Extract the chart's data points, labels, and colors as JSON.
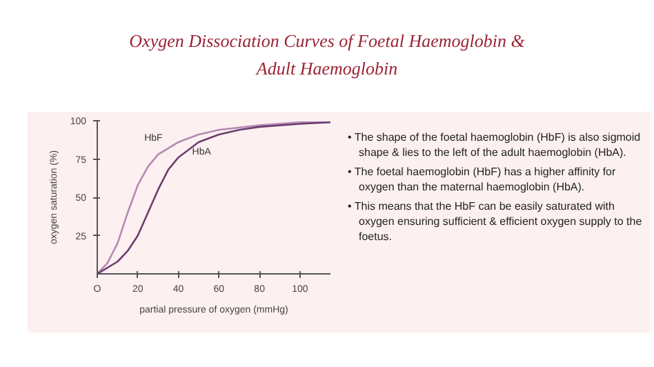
{
  "chart_data": {
    "type": "line",
    "title": "Oxygen Dissociation Curves of Foetal Haemoglobin & Adult Haemoglobin",
    "xlabel": "partial pressure of oxygen (mmHg)",
    "ylabel": "oxygen saturation (%)",
    "xlim": [
      0,
      115
    ],
    "ylim": [
      0,
      100
    ],
    "xticks": [
      {
        "value": 0,
        "label": "O"
      },
      20,
      40,
      60,
      80,
      100
    ],
    "yticks": [
      25,
      50,
      75,
      100
    ],
    "grid": false,
    "legend": false,
    "marker": "none",
    "line_style": "solid",
    "series": [
      {
        "name": "HbF",
        "color": "#b48ab4",
        "x": [
          0,
          5,
          10,
          15,
          20,
          25,
          30,
          40,
          50,
          60,
          80,
          100,
          115
        ],
        "values": [
          0,
          7,
          20,
          40,
          58,
          70,
          78,
          86,
          91,
          94,
          97,
          99,
          99
        ]
      },
      {
        "name": "HbA",
        "color": "#6a3d6e",
        "x": [
          0,
          10,
          15,
          20,
          25,
          30,
          35,
          40,
          50,
          60,
          70,
          80,
          100,
          115
        ],
        "values": [
          0,
          8,
          15,
          25,
          40,
          55,
          68,
          76,
          86,
          91,
          94,
          96,
          98,
          99
        ]
      }
    ],
    "annotations": [
      "• The shape of the foetal haemoglobin (HbF) is also sigmoid shape & lies to the left of the adult haemoglobin (HbA).",
      "• The foetal haemoglobin (HbF) has a higher affinity for oxygen than the maternal haemoglobin (HbA).",
      "• This means that the HbF can be easily saturated with oxygen ensuring sufficient & efficient oxygen supply to the foetus."
    ]
  }
}
